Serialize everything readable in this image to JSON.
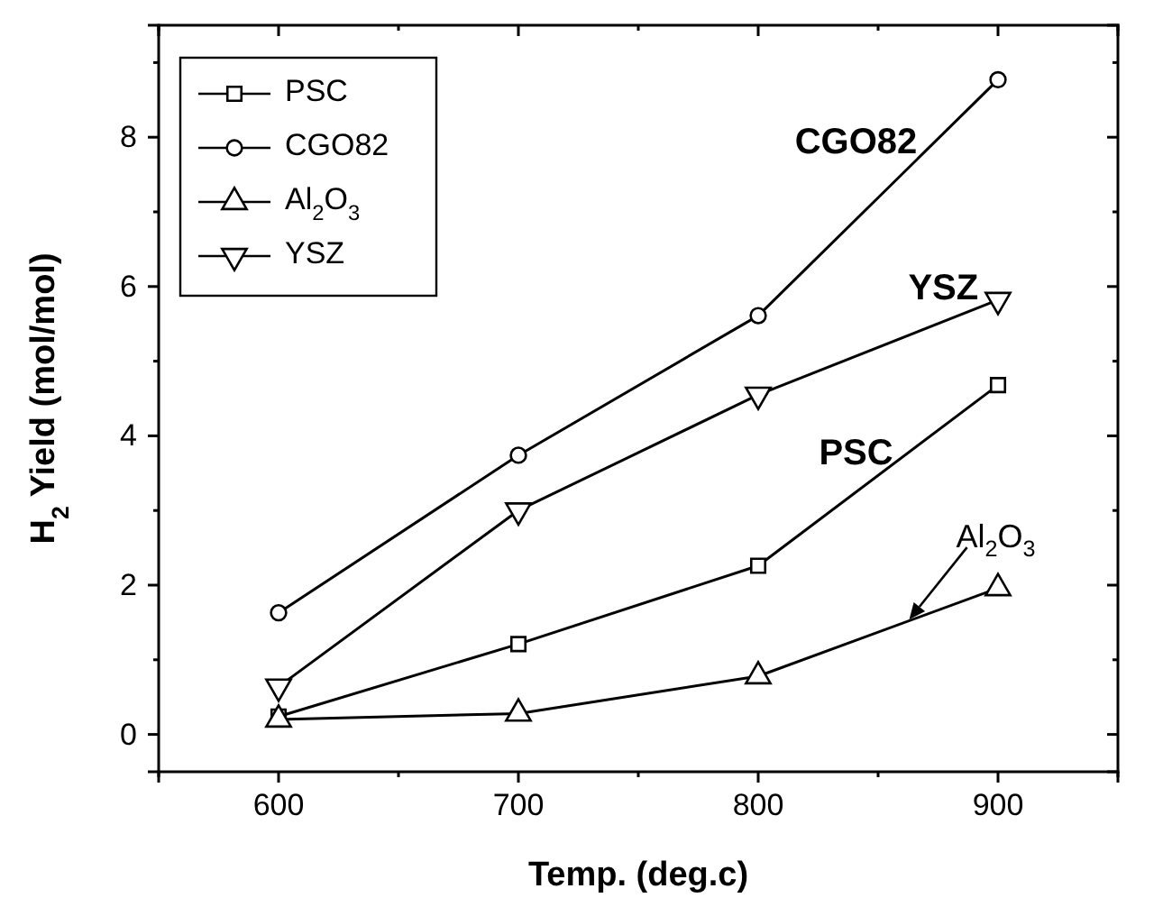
{
  "chart_data": {
    "type": "line",
    "xlabel": "Temp. (deg.c)",
    "ylabel": "H$_{2}$ Yield (mol/mol)",
    "x": [
      600,
      700,
      800,
      900
    ],
    "series": [
      {
        "name": "PSC",
        "color": "#000000",
        "marker": "square",
        "values": [
          0.24,
          1.21,
          2.26,
          4.68
        ]
      },
      {
        "name": "CGO82",
        "color": "#000000",
        "marker": "circle",
        "values": [
          1.63,
          3.74,
          5.61,
          8.77
        ]
      },
      {
        "name": "Al$_{2}$O$_{3}$",
        "color": "#000000",
        "marker": "triangle",
        "values": [
          0.2,
          0.28,
          0.78,
          1.96
        ]
      },
      {
        "name": "YSZ",
        "color": "#000000",
        "marker": "triangle_down",
        "values": [
          0.64,
          3.0,
          4.55,
          5.82
        ]
      }
    ],
    "xlim": [
      550,
      950
    ],
    "xticks": [
      {
        "value": 550,
        "label": null
      },
      600,
      {
        "value": 650,
        "label": null
      },
      700,
      {
        "value": 750,
        "label": null
      },
      800,
      {
        "value": 850,
        "label": null
      },
      900,
      {
        "value": 950,
        "label": null
      }
    ],
    "ylim": [
      -0.5,
      9.5
    ],
    "yticks": [
      0,
      {
        "value": 1,
        "label": null
      },
      2,
      {
        "value": 3,
        "label": null
      },
      4,
      {
        "value": 5,
        "label": null
      },
      6,
      {
        "value": 7,
        "label": null
      },
      8,
      {
        "value": 9,
        "label": null
      }
    ],
    "annotations": [
      "CGO82",
      "YSZ",
      "PSC",
      {
        "text": "Al$_{2}$O$_{3}$",
        "x": 863,
        "y": 1.54
      }
    ],
    "legend": "top left",
    "grid": false,
    "line_style": "solid"
  }
}
